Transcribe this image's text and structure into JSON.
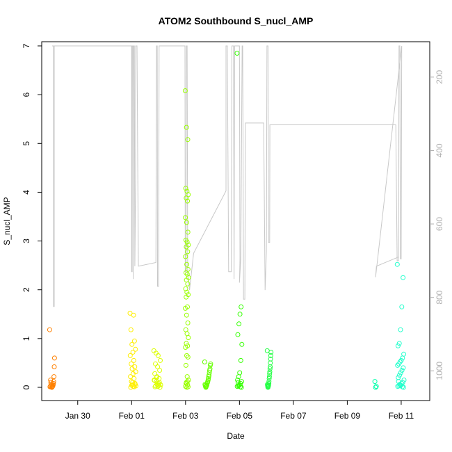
{
  "chart_data": {
    "type": "scatter",
    "title": "ATOM2 Southbound S_nucl_AMP",
    "xlabel": "Date",
    "ylabel": "S_nucl_AMP",
    "x_unit": "days (Jan 30 = 0)",
    "xlim": [
      -1.0,
      12.75
    ],
    "ylim": [
      0,
      7
    ],
    "y_ticks": [
      0,
      1,
      2,
      3,
      4,
      5,
      6,
      7
    ],
    "x_ticks": [
      {
        "x": 0,
        "label": "Jan 30"
      },
      {
        "x": 2,
        "label": "Feb 01"
      },
      {
        "x": 4,
        "label": "Feb 03"
      },
      {
        "x": 6,
        "label": "Feb 05"
      },
      {
        "x": 8,
        "label": "Feb 07"
      },
      {
        "x": 10,
        "label": "Feb 09"
      },
      {
        "x": 12,
        "label": "Feb 11"
      }
    ],
    "secondary_axis": {
      "ylim_top": 115,
      "ylim_bottom": 1045,
      "ticks": [
        200,
        400,
        600,
        800,
        1000
      ],
      "color": "#b0b0b0"
    },
    "clusters": [
      {
        "x": -0.95,
        "width": 0.18,
        "color": "#ff8000",
        "values": [
          1.18,
          0.6,
          0.42,
          0.22,
          0.12,
          0.08,
          0.05,
          0.03,
          0.02,
          0.01,
          0.0,
          0.0,
          0.04,
          0.06,
          0.1,
          0.15,
          0.02,
          0.01
        ]
      },
      {
        "x": 2.05,
        "width": 0.22,
        "color": "#ffee00",
        "values": [
          1.52,
          1.48,
          1.18,
          0.95,
          0.88,
          0.78,
          0.72,
          0.65,
          0.55,
          0.48,
          0.42,
          0.38,
          0.32,
          0.28,
          0.22,
          0.18,
          0.12,
          0.08,
          0.05,
          0.03,
          0.02,
          0.0,
          0.01,
          0.04,
          0.06,
          0.1
        ]
      },
      {
        "x": 2.95,
        "width": 0.25,
        "color": "#ddff00",
        "values": [
          0.75,
          0.7,
          0.65,
          0.55,
          0.48,
          0.42,
          0.35,
          0.28,
          0.22,
          0.18,
          0.15,
          0.12,
          0.08,
          0.05,
          0.03,
          0.02,
          0.0,
          0.01,
          0.06,
          0.1,
          0.14,
          0.2,
          0.04
        ]
      },
      {
        "x": 4.05,
        "width": 0.12,
        "color": "#99ff00",
        "values": [
          6.08,
          5.33,
          5.08,
          4.08,
          4.02,
          3.95,
          3.88,
          3.82,
          3.48,
          3.38,
          3.18,
          3.02,
          2.98,
          2.92,
          2.88,
          2.78,
          2.68,
          2.52,
          2.42,
          2.35,
          2.32,
          2.25,
          2.2,
          2.12,
          2.02,
          1.95,
          1.9,
          1.85,
          1.65,
          1.62,
          1.48,
          1.32,
          1.18,
          1.1,
          1.02,
          0.9,
          0.85,
          0.82,
          0.65,
          0.62,
          0.45,
          0.22,
          0.15,
          0.1,
          0.05,
          0.02,
          0.0,
          0.01,
          0.08,
          0.12
        ]
      },
      {
        "x": 4.82,
        "width": 0.22,
        "color": "#66ff00",
        "values": [
          0.52,
          0.48,
          0.45,
          0.38,
          0.35,
          0.3,
          0.25,
          0.22,
          0.18,
          0.15,
          0.12,
          0.1,
          0.08,
          0.05,
          0.03,
          0.02,
          0.0,
          0.01,
          0.04,
          0.06
        ]
      },
      {
        "x": 6.0,
        "width": 0.18,
        "color": "#33ff00",
        "values": [
          6.85,
          1.65,
          1.5,
          1.3,
          1.08,
          0.88,
          0.55,
          0.3,
          0.22,
          0.15,
          0.12,
          0.08,
          0.05,
          0.03,
          0.02,
          0.0,
          0.01,
          0.04,
          0.1
        ]
      },
      {
        "x": 7.1,
        "width": 0.14,
        "color": "#22ff44",
        "values": [
          0.75,
          0.72,
          0.65,
          0.58,
          0.5,
          0.42,
          0.38,
          0.32,
          0.28,
          0.22,
          0.18,
          0.12,
          0.08,
          0.05,
          0.03,
          0.02,
          0.0,
          0.01,
          0.04,
          0.06
        ]
      },
      {
        "x": 11.05,
        "width": 0.05,
        "color": "#00ffaa",
        "values": [
          0.12,
          0.02,
          0.0
        ]
      },
      {
        "x": 11.98,
        "width": 0.25,
        "color": "#22ffcc",
        "values": [
          2.52,
          2.25,
          1.65,
          1.18,
          0.9,
          0.85,
          0.68,
          0.6,
          0.55,
          0.52,
          0.48,
          0.45,
          0.4,
          0.35,
          0.3,
          0.25,
          0.2,
          0.15,
          0.1,
          0.08,
          0.05,
          0.03,
          0.02,
          0.0,
          0.01,
          0.04,
          0.06,
          0.12
        ]
      }
    ],
    "secondary_series": {
      "color": "#c8c8c8",
      "points": [
        [
          -0.95,
          115
        ],
        [
          -0.9,
          115
        ],
        [
          -0.9,
          825
        ],
        [
          -0.87,
          825
        ],
        [
          -0.87,
          115
        ],
        [
          2.0,
          115
        ],
        [
          2.0,
          730
        ],
        [
          2.02,
          730
        ],
        [
          2.02,
          115
        ],
        [
          2.05,
          115
        ],
        [
          2.06,
          750
        ],
        [
          2.07,
          115
        ],
        [
          2.1,
          115
        ],
        [
          2.12,
          715
        ],
        [
          2.15,
          480
        ],
        [
          2.15,
          115
        ],
        [
          2.2,
          115
        ],
        [
          2.25,
          715
        ],
        [
          2.9,
          705
        ],
        [
          2.92,
          115
        ],
        [
          2.95,
          115
        ],
        [
          2.96,
          770
        ],
        [
          3.0,
          770
        ],
        [
          3.02,
          115
        ],
        [
          3.98,
          115
        ],
        [
          3.99,
          730
        ],
        [
          4.02,
          730
        ],
        [
          4.03,
          115
        ],
        [
          4.06,
          115
        ],
        [
          4.08,
          730
        ],
        [
          4.15,
          780
        ],
        [
          4.3,
          680
        ],
        [
          5.5,
          510
        ],
        [
          5.5,
          115
        ],
        [
          5.55,
          115
        ],
        [
          5.6,
          730
        ],
        [
          5.7,
          730
        ],
        [
          5.72,
          115
        ],
        [
          5.78,
          115
        ],
        [
          5.8,
          750
        ],
        [
          5.82,
          115
        ],
        [
          6.0,
          115
        ],
        [
          6.02,
          695
        ],
        [
          6.0,
          760
        ],
        [
          6.05,
          695
        ],
        [
          6.1,
          115
        ],
        [
          6.12,
          115
        ],
        [
          6.15,
          805
        ],
        [
          6.2,
          805
        ],
        [
          6.22,
          325
        ],
        [
          6.9,
          325
        ],
        [
          6.95,
          780
        ],
        [
          7.0,
          675
        ],
        [
          7.02,
          115
        ],
        [
          7.06,
          115
        ],
        [
          7.08,
          650
        ],
        [
          7.12,
          650
        ],
        [
          7.13,
          330
        ],
        [
          11.8,
          330
        ],
        [
          11.85,
          700
        ],
        [
          11.9,
          700
        ],
        [
          11.92,
          115
        ],
        [
          11.95,
          115
        ],
        [
          11.97,
          695
        ],
        [
          12.0,
          695
        ],
        [
          12.02,
          115
        ],
        [
          11.05,
          745
        ],
        [
          11.08,
          715
        ],
        [
          11.9,
          690
        ]
      ]
    }
  }
}
